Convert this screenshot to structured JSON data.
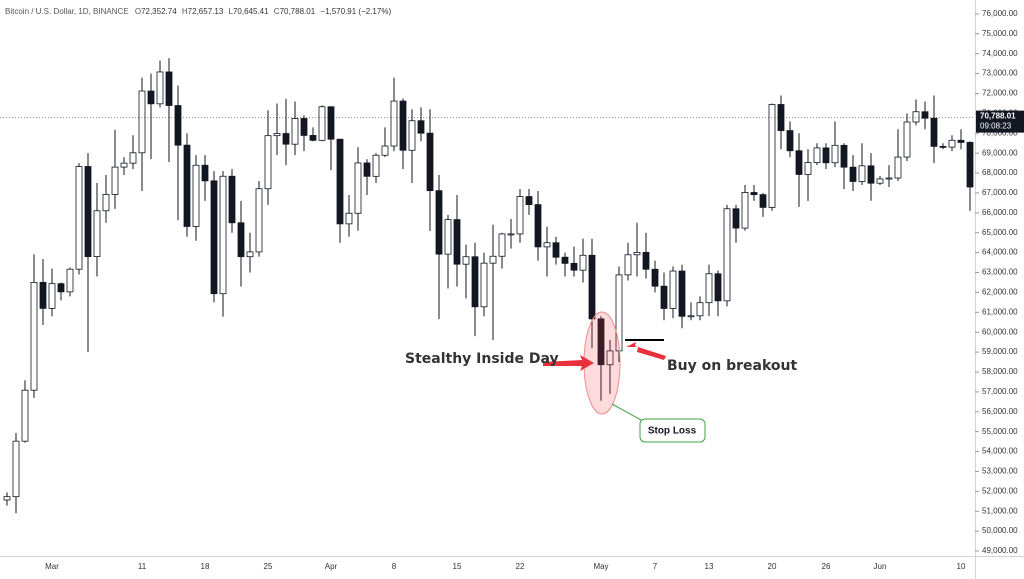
{
  "chart_data": {
    "type": "candlestick",
    "header": {
      "symbol": "Bitcoin / U.S. Dollar, 1D, BINANCE",
      "open_key": "O",
      "open": "72,352.74",
      "high_key": "H",
      "high": "72,657.13",
      "low_key": "L",
      "low": "70,645.41",
      "close_key": "C",
      "close": "70,788.01",
      "change": "−1,570.91 (−2.17%)"
    },
    "categories": [
      null,
      null,
      null,
      null,
      null,
      "Mar",
      null,
      null,
      null,
      null,
      null,
      null,
      null,
      null,
      null,
      "11",
      null,
      null,
      null,
      null,
      null,
      null,
      "18",
      null,
      null,
      null,
      null,
      null,
      null,
      "25",
      null,
      null,
      null,
      null,
      null,
      null,
      "Apr",
      null,
      null,
      null,
      null,
      null,
      null,
      "8",
      null,
      null,
      null,
      null,
      null,
      null,
      "15",
      null,
      null,
      null,
      null,
      null,
      null,
      "22",
      null,
      null,
      null,
      null,
      null,
      null,
      null,
      null,
      "May",
      null,
      null,
      null,
      null,
      null,
      "7",
      null,
      null,
      null,
      null,
      null,
      "13",
      null,
      null,
      null,
      null,
      null,
      null,
      "20",
      null,
      null,
      null,
      null,
      null,
      "26",
      null,
      null,
      null,
      null,
      null,
      "Jun",
      null,
      null,
      null,
      null,
      null,
      null,
      null,
      null,
      "10",
      null
    ],
    "open": [
      51565,
      51733,
      54522,
      57085,
      62505,
      61198,
      62440,
      62029,
      63168,
      68330,
      63801,
      66106,
      66925,
      68300,
      68498,
      69019,
      72123,
      71481,
      73083,
      71396,
      69403,
      65315,
      68393,
      67609,
      61937,
      67840,
      65501,
      63796,
      64037,
      67211,
      69880,
      69988,
      69452,
      70744,
      69892,
      69645,
      71333,
      69702,
      65446,
      65980,
      68508,
      67837,
      68896,
      69360,
      71620,
      69146,
      70631,
      70006,
      67116,
      63924,
      65661,
      63419,
      63793,
      61277,
      63470,
      63818,
      64940,
      64941,
      66819,
      66414,
      64289,
      64498,
      63770,
      63461,
      63118,
      63866,
      60672,
      58364,
      59060,
      62882,
      63892,
      64012,
      63165,
      62313,
      61193,
      63075,
      60799,
      60825,
      61484,
      62938,
      61577,
      66206,
      65235,
      67024,
      66915,
      66274,
      71447,
      70136,
      69122,
      67929,
      68526,
      69265,
      68518,
      69394,
      68296,
      67578,
      68364,
      67491,
      67706,
      67751,
      68804,
      70567,
      71082,
      70757,
      69342,
      69305,
      69648,
      69540
    ],
    "high": [
      51950,
      54938,
      57588,
      63913,
      63677,
      63200,
      62500,
      63250,
      68500,
      69000,
      67500,
      67900,
      70170,
      68800,
      69900,
      72800,
      73000,
      73650,
      73777,
      72400,
      70000,
      68900,
      68900,
      68100,
      68100,
      68200,
      66600,
      65000,
      67600,
      71150,
      71500,
      71727,
      71600,
      70900,
      70300,
      71400,
      71350,
      69700,
      66900,
      69300,
      68700,
      69000,
      70300,
      72797,
      71750,
      71200,
      71300,
      71200,
      67900,
      65900,
      66900,
      64400,
      64500,
      64000,
      65400,
      65000,
      65700,
      67200,
      67200,
      67100,
      65300,
      64800,
      64000,
      64300,
      64700,
      64700,
      60800,
      59600,
      63300,
      64500,
      65500,
      65000,
      63600,
      63000,
      63300,
      63400,
      61500,
      61800,
      63400,
      63100,
      66400,
      66400,
      67400,
      67400,
      67000,
      71500,
      71900,
      70600,
      70000,
      69200,
      69500,
      69500,
      70600,
      69500,
      68900,
      69500,
      69000,
      67850,
      68400,
      70200,
      71000,
      71700,
      71600,
      71900,
      69500,
      69900,
      70200,
      69600
    ],
    "low": [
      51280,
      50901,
      54450,
      56700,
      60364,
      60800,
      61600,
      61800,
      62900,
      59005,
      62800,
      65500,
      66200,
      67900,
      68200,
      67100,
      68700,
      71300,
      68555,
      65630,
      64800,
      64600,
      66600,
      61500,
      60775,
      65000,
      62300,
      63000,
      63800,
      66400,
      68900,
      68400,
      68900,
      69100,
      69600,
      69600,
      68148,
      64493,
      64800,
      65100,
      66900,
      67500,
      68800,
      69100,
      68200,
      67500,
      69600,
      65086,
      60660,
      62200,
      62300,
      61700,
      59800,
      60800,
      59600,
      63200,
      64200,
      64500,
      65900,
      63600,
      62800,
      63400,
      62800,
      62800,
      62500,
      59191,
      56552,
      56900,
      58500,
      62600,
      62800,
      62700,
      62000,
      60600,
      60700,
      60200,
      60600,
      60600,
      60800,
      60800,
      61300,
      64500,
      65100,
      66600,
      65800,
      66100,
      69200,
      68800,
      66300,
      66600,
      68400,
      68200,
      68300,
      67200,
      67100,
      67400,
      66600,
      67400,
      67300,
      67600,
      68600,
      70400,
      70200,
      68500,
      69200,
      69100,
      69200,
      66100
    ],
    "close": [
      51733,
      54522,
      57085,
      62505,
      61198,
      62440,
      62029,
      63168,
      68330,
      63801,
      66106,
      66925,
      68300,
      68498,
      69019,
      72123,
      71481,
      73083,
      71396,
      69403,
      65315,
      68393,
      67609,
      61937,
      67840,
      65501,
      63796,
      64037,
      67211,
      69880,
      69988,
      69452,
      70744,
      69892,
      69645,
      71333,
      69702,
      65446,
      65980,
      68508,
      67837,
      68896,
      69360,
      71620,
      69146,
      70631,
      70006,
      67116,
      63924,
      65661,
      63419,
      63793,
      61277,
      63470,
      63818,
      64940,
      64941,
      66819,
      66414,
      64289,
      64498,
      63770,
      63461,
      63118,
      63866,
      60672,
      58364,
      59060,
      62882,
      63892,
      64012,
      63165,
      62313,
      61193,
      63075,
      60799,
      60825,
      61484,
      62938,
      61577,
      66206,
      65235,
      67024,
      66915,
      66274,
      71447,
      70136,
      69122,
      67929,
      68526,
      69265,
      68518,
      69394,
      68296,
      67578,
      68364,
      67491,
      67706,
      67751,
      68804,
      70567,
      71082,
      70757,
      69342,
      69305,
      69648,
      69540,
      67300
    ],
    "up_color": "#ffffff",
    "down_color": "#131722",
    "outline_color": "#131722",
    "ylim": [
      48750,
      76700
    ],
    "yticks": [
      {
        "value": 49000,
        "label": "49,000.00"
      },
      {
        "value": 50000,
        "label": "50,000.00"
      },
      {
        "value": 51000,
        "label": "51,000.00"
      },
      {
        "value": 52000,
        "label": "52,000.00"
      },
      {
        "value": 53000,
        "label": "53,000.00"
      },
      {
        "value": 54000,
        "label": "54,000.00"
      },
      {
        "value": 55000,
        "label": "55,000.00"
      },
      {
        "value": 56000,
        "label": "56,000.00"
      },
      {
        "value": 57000,
        "label": "57,000.00"
      },
      {
        "value": 58000,
        "label": "58,000.00"
      },
      {
        "value": 59000,
        "label": "59,000.00"
      },
      {
        "value": 60000,
        "label": "60,000.00"
      },
      {
        "value": 61000,
        "label": "61,000.00"
      },
      {
        "value": 62000,
        "label": "62,000.00"
      },
      {
        "value": 63000,
        "label": "63,000.00"
      },
      {
        "value": 64000,
        "label": "64,000.00"
      },
      {
        "value": 65000,
        "label": "65,000.00"
      },
      {
        "value": 66000,
        "label": "66,000.00"
      },
      {
        "value": 67000,
        "label": "67,000.00"
      },
      {
        "value": 68000,
        "label": "68,000.00"
      },
      {
        "value": 69000,
        "label": "69,000.00"
      },
      {
        "value": 70000,
        "label": "70,000.00"
      },
      {
        "value": 71000,
        "label": "71,000.00"
      },
      {
        "value": 72000,
        "label": "72,000.00"
      },
      {
        "value": 73000,
        "label": "73,000.00"
      },
      {
        "value": 74000,
        "label": "74,000.00"
      },
      {
        "value": 75000,
        "label": "75,000.00"
      },
      {
        "value": 76000,
        "label": "76,000.00"
      }
    ],
    "last_price": {
      "value": 70788.01,
      "label": "70,788.01",
      "countdown": "09:08:23"
    },
    "annotations": {
      "inside_day": "Stealthy Inside Day",
      "breakout": "Buy on breakout",
      "stop_loss": "Stop Loss"
    }
  }
}
